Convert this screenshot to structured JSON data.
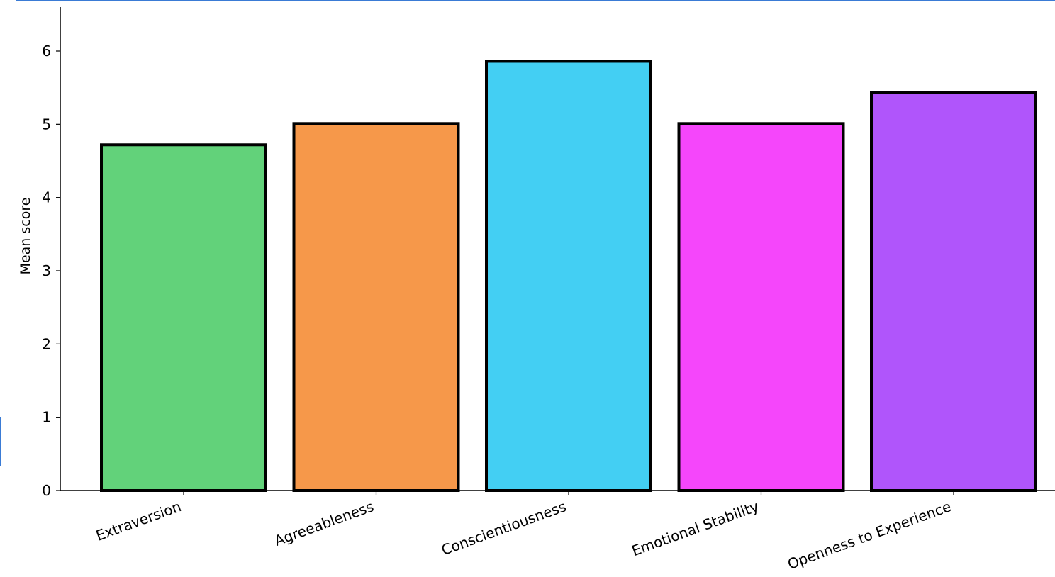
{
  "chart_data": {
    "type": "bar",
    "title": "",
    "xlabel": "",
    "ylabel": "Mean score",
    "ylim": [
      0,
      6.6
    ],
    "yticks": [
      0,
      1,
      2,
      3,
      4,
      5,
      6
    ],
    "categories": [
      "Extraversion",
      "Agreeableness",
      "Conscientiousness",
      "Emotional Stability",
      "Openness to Experience"
    ],
    "values": [
      4.72,
      5.01,
      5.86,
      5.01,
      5.43
    ],
    "colors": [
      "#62d27a",
      "#f6984a",
      "#43cff3",
      "#f546fb",
      "#b055fb"
    ],
    "edge_color": "#000000",
    "grid": false,
    "legend": "none"
  }
}
